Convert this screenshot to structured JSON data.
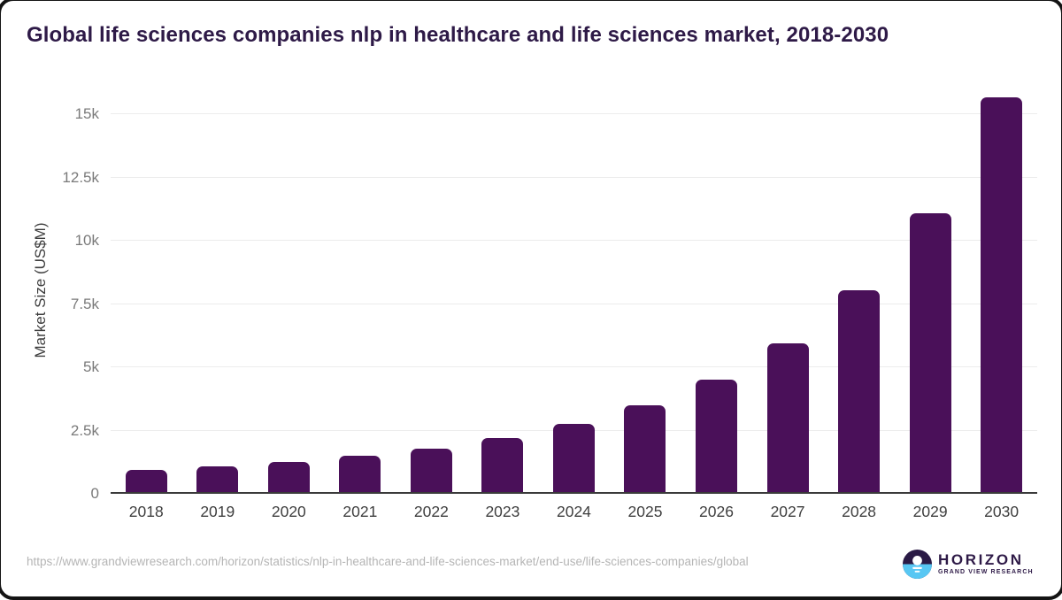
{
  "title": "Global life sciences companies nlp in healthcare and life sciences market, 2018-2030",
  "chart_data": {
    "type": "bar",
    "title": "Global life sciences companies nlp in healthcare and life sciences market, 2018-2030",
    "categories": [
      "2018",
      "2019",
      "2020",
      "2021",
      "2022",
      "2023",
      "2024",
      "2025",
      "2026",
      "2027",
      "2028",
      "2029",
      "2030"
    ],
    "values": [
      860,
      1010,
      1180,
      1450,
      1710,
      2150,
      2680,
      3420,
      4430,
      5860,
      7990,
      11000,
      15600
    ],
    "xlabel": "",
    "ylabel": "Market Size (US$M)",
    "ylim": [
      0,
      16100
    ],
    "yticks": [
      {
        "label": "0",
        "value": 0
      },
      {
        "label": "2.5k",
        "value": 2500
      },
      {
        "label": "5k",
        "value": 5000
      },
      {
        "label": "7.5k",
        "value": 7500
      },
      {
        "label": "10k",
        "value": 10000
      },
      {
        "label": "12.5k",
        "value": 12500
      },
      {
        "label": "15k",
        "value": 15000
      }
    ],
    "grid": "horizontal",
    "legend": "none",
    "bar_color": "#4a1059"
  },
  "footer": {
    "source_url": "https://www.grandviewresearch.com/horizon/statistics/nlp-in-healthcare-and-life-sciences-market/end-use/life-sciences-companies/global"
  },
  "logo": {
    "name": "HORIZON",
    "subtitle": "GRAND VIEW RESEARCH",
    "circle_top_color": "#2a1a45",
    "circle_bottom_color": "#58c7f3"
  },
  "colors": {
    "title_text": "#2e1a47",
    "bar": "#4a1059",
    "gridline": "#ececec",
    "axis_line": "#3a3a3a",
    "y_tick_text": "#7a7a7a",
    "x_tick_text": "#3f3f3f",
    "source_text": "#b5b5b5"
  }
}
